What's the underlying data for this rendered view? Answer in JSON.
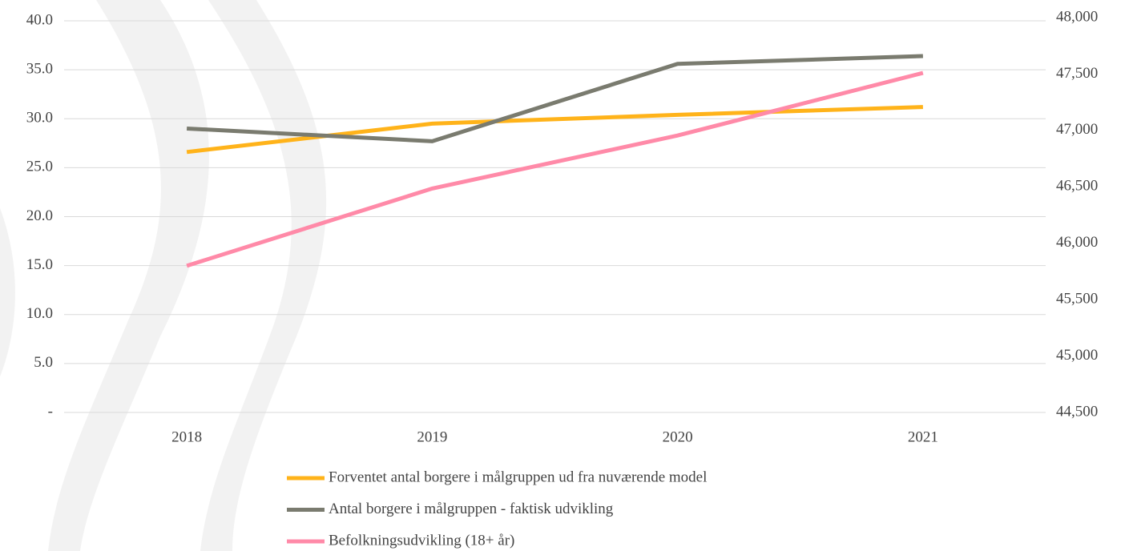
{
  "chart_data": {
    "type": "line",
    "categories": [
      "2018",
      "2019",
      "2020",
      "2021"
    ],
    "series": [
      {
        "name": "Forventet antal borgere i målgruppen ud fra nuværende model",
        "color": "#ffb31a",
        "values": [
          26.6,
          29.5,
          30.4,
          31.2
        ]
      },
      {
        "name": "Antal borgere i målgruppen - faktisk udvikling",
        "color": "#7a7b6f",
        "values": [
          29.0,
          27.7,
          35.6,
          36.4
        ]
      },
      {
        "name": "Befolkningsudvikling (18+ år)",
        "color": "#ff8aa8",
        "values": [
          45800,
          46485,
          46955,
          47510
        ],
        "axis": "y2"
      }
    ],
    "ylim": [
      0,
      40
    ],
    "yticks": [
      {
        "value": 0,
        "label": "-"
      },
      {
        "value": 5,
        "label": "5.0"
      },
      {
        "value": 10,
        "label": "10.0"
      },
      {
        "value": 15,
        "label": "15.0"
      },
      {
        "value": 20,
        "label": "20.0"
      },
      {
        "value": 25,
        "label": "25.0"
      },
      {
        "value": 30,
        "label": "30.0"
      },
      {
        "value": 35,
        "label": "35.0"
      },
      {
        "value": 40,
        "label": "40.0"
      }
    ],
    "y2lim": [
      44500,
      48000
    ],
    "y2ticks": [
      {
        "value": 44500,
        "label": "44,500"
      },
      {
        "value": 45000,
        "label": "45,000"
      },
      {
        "value": 45500,
        "label": "45,500"
      },
      {
        "value": 46000,
        "label": "46,000"
      },
      {
        "value": 46500,
        "label": "46,500"
      },
      {
        "value": 47000,
        "label": "47,000"
      },
      {
        "value": 47500,
        "label": "47,500"
      },
      {
        "value": 48000,
        "label": "48,000"
      }
    ],
    "grid": true
  }
}
